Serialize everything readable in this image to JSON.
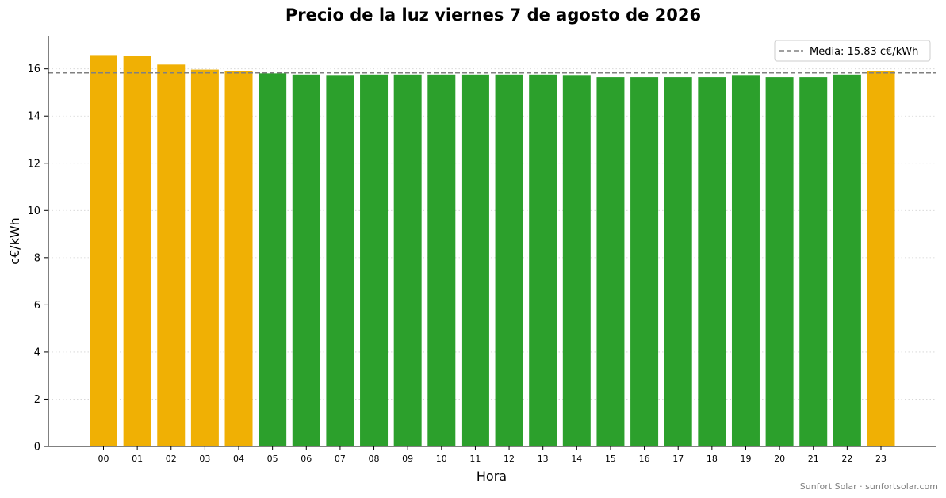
{
  "chart_data": {
    "type": "bar",
    "title": "Precio de la luz viernes 7 de agosto de 2026",
    "xlabel": "Hora",
    "ylabel": "c€/kWh",
    "categories": [
      "00",
      "01",
      "02",
      "03",
      "04",
      "05",
      "06",
      "07",
      "08",
      "09",
      "10",
      "11",
      "12",
      "13",
      "14",
      "15",
      "16",
      "17",
      "18",
      "19",
      "20",
      "21",
      "22",
      "23"
    ],
    "values": [
      16.58,
      16.54,
      16.18,
      15.97,
      15.89,
      15.81,
      15.76,
      15.71,
      15.76,
      15.76,
      15.76,
      15.76,
      15.76,
      15.76,
      15.71,
      15.65,
      15.65,
      15.65,
      15.65,
      15.71,
      15.65,
      15.65,
      15.76,
      15.89
    ],
    "bar_colors": [
      "#f0b004",
      "#f0b004",
      "#f0b004",
      "#f0b004",
      "#f0b004",
      "#2ca02c",
      "#2ca02c",
      "#2ca02c",
      "#2ca02c",
      "#2ca02c",
      "#2ca02c",
      "#2ca02c",
      "#2ca02c",
      "#2ca02c",
      "#2ca02c",
      "#2ca02c",
      "#2ca02c",
      "#2ca02c",
      "#2ca02c",
      "#2ca02c",
      "#2ca02c",
      "#2ca02c",
      "#2ca02c",
      "#f0b004"
    ],
    "colors": {
      "above_mean": "#f0b004",
      "below_mean": "#2ca02c",
      "mean_line": "#808080",
      "grid": "#d3d3d3"
    },
    "mean": 15.83,
    "ylim": [
      0,
      17.4
    ],
    "yticks": [
      0,
      2,
      4,
      6,
      8,
      10,
      12,
      14,
      16
    ],
    "grid": "horizontal dotted",
    "legend": {
      "position": "top-right",
      "entries": [
        "Media: 15.83 c€/kWh"
      ]
    },
    "credit": "Sunfort Solar · sunfortsolar.com"
  }
}
